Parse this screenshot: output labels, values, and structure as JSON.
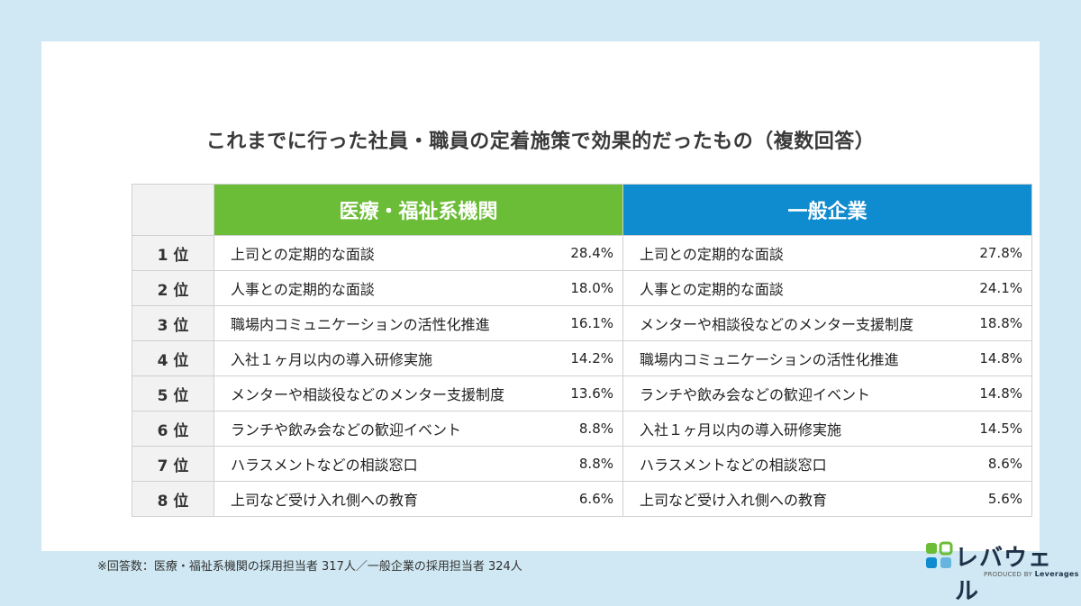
{
  "title": "これまでに行った社員・職員の定着施策で効果的だったもの（複数回答）",
  "headers": {
    "medical": "医療・福祉系機関",
    "general": "一般企業"
  },
  "colors": {
    "medical": "#6bbc36",
    "general": "#0f8bd0",
    "rank_bg": "#f2f2f2",
    "page_bg": "#cfe8f3"
  },
  "rows": [
    {
      "rank": "1 位",
      "medical": {
        "label": "上司との定期的な面談",
        "pct": "28.4%"
      },
      "general": {
        "label": "上司との定期的な面談",
        "pct": "27.8%"
      }
    },
    {
      "rank": "2 位",
      "medical": {
        "label": "人事との定期的な面談",
        "pct": "18.0%"
      },
      "general": {
        "label": "人事との定期的な面談",
        "pct": "24.1%"
      }
    },
    {
      "rank": "3 位",
      "medical": {
        "label": "職場内コミュニケーションの活性化推進",
        "pct": "16.1%"
      },
      "general": {
        "label": "メンターや相談役などのメンター支援制度",
        "pct": "18.8%"
      }
    },
    {
      "rank": "4 位",
      "medical": {
        "label": "入社１ヶ月以内の導入研修実施",
        "pct": "14.2%"
      },
      "general": {
        "label": "職場内コミュニケーションの活性化推進",
        "pct": "14.8%"
      }
    },
    {
      "rank": "5 位",
      "medical": {
        "label": "メンターや相談役などのメンター支援制度",
        "pct": "13.6%"
      },
      "general": {
        "label": "ランチや飲み会などの歓迎イベント",
        "pct": "14.8%"
      }
    },
    {
      "rank": "6 位",
      "medical": {
        "label": "ランチや飲み会などの歓迎イベント",
        "pct": "8.8%"
      },
      "general": {
        "label": "入社１ヶ月以内の導入研修実施",
        "pct": "14.5%"
      }
    },
    {
      "rank": "7 位",
      "medical": {
        "label": "ハラスメントなどの相談窓口",
        "pct": "8.8%"
      },
      "general": {
        "label": "ハラスメントなどの相談窓口",
        "pct": "8.6%"
      }
    },
    {
      "rank": "8 位",
      "medical": {
        "label": "上司など受け入れ側への教育",
        "pct": "6.6%"
      },
      "general": {
        "label": "上司など受け入れ側への教育",
        "pct": "5.6%"
      }
    }
  ],
  "note": "※回答数：医療・福祉系機関の採用担当者 317人／一般企業の採用担当者 324人",
  "logo": {
    "name": "レバウェル",
    "produced_by": "PRODUCED BY",
    "company": "Leverages"
  }
}
